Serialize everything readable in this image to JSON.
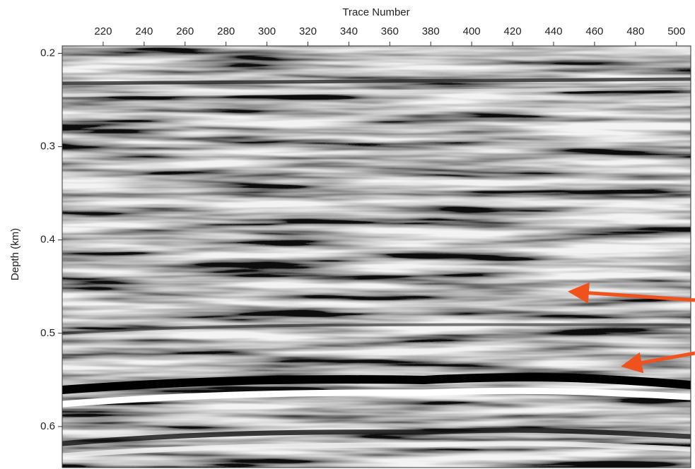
{
  "chart_data": {
    "type": "image",
    "xlabel": "Trace Number",
    "ylabel": "Depth (km)",
    "xlim": [
      200,
      507
    ],
    "xticks": [
      220,
      240,
      260,
      280,
      300,
      320,
      340,
      360,
      380,
      400,
      420,
      440,
      460,
      480,
      500
    ],
    "ylim": [
      0.192,
      0.644
    ],
    "yticks": [
      0.2,
      0.3,
      0.4,
      0.5,
      0.6
    ],
    "x_axis_position": "top",
    "colormap": "gray"
  }
}
